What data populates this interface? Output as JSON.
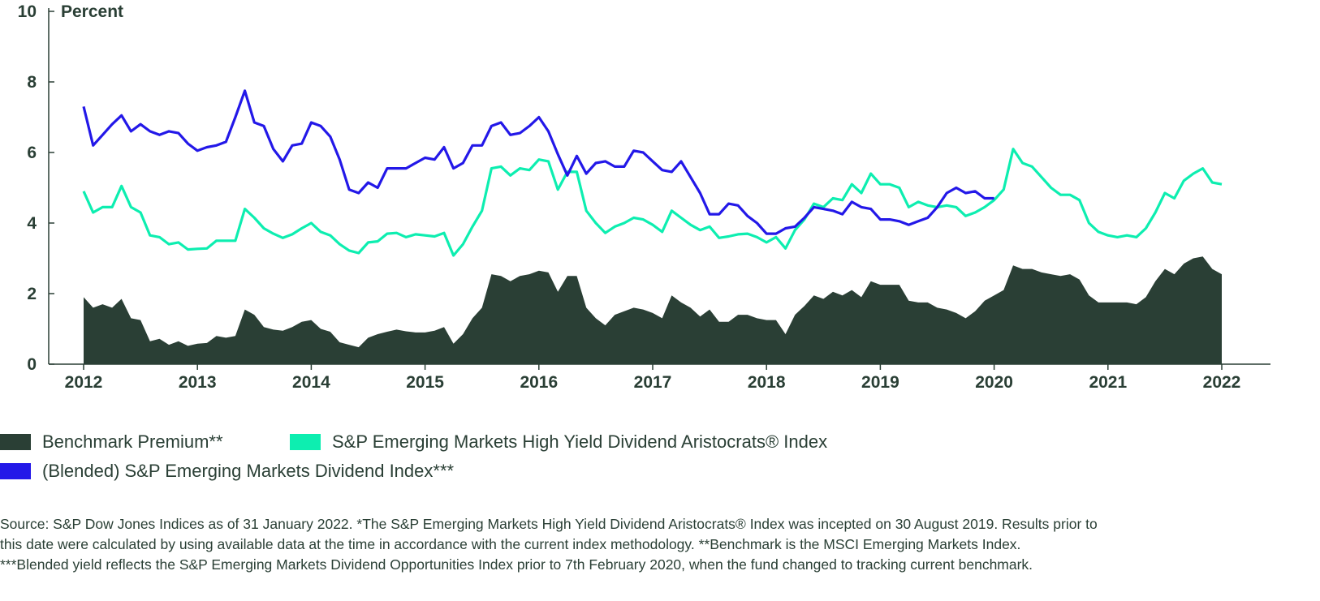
{
  "chart_data": {
    "type": "area+line",
    "ylabel": "Percent",
    "ylim": [
      0,
      10
    ],
    "yticks": [
      "0",
      "2",
      "4",
      "6",
      "8",
      "10"
    ],
    "xticks": [
      "2012",
      "2013",
      "2014",
      "2015",
      "2016",
      "2017",
      "2018",
      "2019",
      "2020",
      "2021",
      "2022"
    ],
    "x_start": "2012-01",
    "frequency": "monthly",
    "series": [
      {
        "name": "Benchmark Premium**",
        "kind": "area",
        "color": "#2a3f35",
        "values": [
          1.9,
          1.6,
          1.7,
          1.6,
          1.85,
          1.3,
          1.25,
          0.65,
          0.72,
          0.55,
          0.65,
          0.52,
          0.58,
          0.6,
          0.8,
          0.75,
          0.8,
          1.55,
          1.4,
          1.05,
          0.98,
          0.95,
          1.05,
          1.2,
          1.25,
          1.0,
          0.92,
          0.62,
          0.55,
          0.48,
          0.75,
          0.85,
          0.92,
          0.98,
          0.93,
          0.9,
          0.9,
          0.95,
          1.05,
          0.58,
          0.85,
          1.3,
          1.6,
          2.55,
          2.5,
          2.35,
          2.5,
          2.55,
          2.65,
          2.6,
          2.05,
          2.5,
          2.5,
          1.6,
          1.3,
          1.1,
          1.4,
          1.5,
          1.6,
          1.55,
          1.45,
          1.3,
          1.95,
          1.75,
          1.6,
          1.35,
          1.55,
          1.2,
          1.2,
          1.4,
          1.4,
          1.3,
          1.25,
          1.25,
          0.85,
          1.4,
          1.65,
          1.95,
          1.85,
          2.05,
          1.95,
          2.1,
          1.9,
          2.35,
          2.25,
          2.25,
          2.25,
          1.8,
          1.75,
          1.75,
          1.6,
          1.55,
          1.45,
          1.3,
          1.5,
          1.8,
          1.95,
          2.1,
          2.8,
          2.7,
          2.7,
          2.6,
          2.55,
          2.5,
          2.55,
          2.4,
          1.95,
          1.75,
          1.75,
          1.75,
          1.75,
          1.7,
          1.9,
          2.35,
          2.7,
          2.55,
          2.85,
          3.0,
          3.05,
          2.7,
          2.55
        ]
      },
      {
        "name": "S&P Emerging Markets High Yield Dividend Aristocrats® Index",
        "kind": "line",
        "color": "#0deeb0",
        "values": [
          4.9,
          4.3,
          4.45,
          4.45,
          5.05,
          4.45,
          4.3,
          3.65,
          3.6,
          3.4,
          3.45,
          3.25,
          3.27,
          3.28,
          3.5,
          3.5,
          3.5,
          4.4,
          4.15,
          3.85,
          3.7,
          3.58,
          3.68,
          3.85,
          4.0,
          3.75,
          3.65,
          3.4,
          3.22,
          3.15,
          3.45,
          3.48,
          3.7,
          3.72,
          3.6,
          3.68,
          3.65,
          3.62,
          3.72,
          3.08,
          3.4,
          3.9,
          4.35,
          5.55,
          5.6,
          5.35,
          5.55,
          5.5,
          5.8,
          5.75,
          4.95,
          5.45,
          5.45,
          4.35,
          4.0,
          3.72,
          3.9,
          4.0,
          4.15,
          4.1,
          3.95,
          3.75,
          4.35,
          4.15,
          3.95,
          3.8,
          3.9,
          3.58,
          3.62,
          3.68,
          3.7,
          3.6,
          3.45,
          3.6,
          3.28,
          3.8,
          4.1,
          4.55,
          4.45,
          4.7,
          4.65,
          5.1,
          4.85,
          5.4,
          5.1,
          5.1,
          5.0,
          4.45,
          4.6,
          4.5,
          4.45,
          4.5,
          4.45,
          4.2,
          4.3,
          4.45,
          4.65,
          4.95,
          6.1,
          5.7,
          5.6,
          5.3,
          5.0,
          4.8,
          4.8,
          4.65,
          4.0,
          3.75,
          3.65,
          3.6,
          3.65,
          3.6,
          3.85,
          4.3,
          4.85,
          4.7,
          5.2,
          5.4,
          5.55,
          5.15,
          5.1
        ]
      },
      {
        "name": "(Blended) S&P Emerging Markets Dividend Index***",
        "kind": "line",
        "color": "#2318e8",
        "values": [
          7.3,
          6.2,
          6.5,
          6.8,
          7.05,
          6.6,
          6.8,
          6.6,
          6.5,
          6.6,
          6.55,
          6.25,
          6.05,
          6.15,
          6.2,
          6.3,
          7.0,
          7.75,
          6.85,
          6.75,
          6.1,
          5.75,
          6.2,
          6.25,
          6.85,
          6.75,
          6.45,
          5.8,
          4.95,
          4.85,
          5.15,
          5.0,
          5.55,
          5.55,
          5.55,
          5.7,
          5.85,
          5.8,
          6.15,
          5.55,
          5.7,
          6.2,
          6.2,
          6.75,
          6.85,
          6.5,
          6.55,
          6.75,
          7.0,
          6.6,
          5.95,
          5.35,
          5.9,
          5.4,
          5.7,
          5.75,
          5.6,
          5.6,
          6.05,
          6.0,
          5.75,
          5.5,
          5.45,
          5.75,
          5.3,
          4.85,
          4.25,
          4.25,
          4.55,
          4.5,
          4.2,
          4.0,
          3.7,
          3.7,
          3.85,
          3.9,
          4.15,
          4.45,
          4.4,
          4.35,
          4.25,
          4.6,
          4.45,
          4.4,
          4.1,
          4.1,
          4.05,
          3.95,
          4.05,
          4.15,
          4.45,
          4.85,
          5.0,
          4.85,
          4.9,
          4.7,
          4.7
        ]
      }
    ],
    "legend_position": "bottom-left",
    "grid": false
  },
  "footnote": [
    "Source: S&P Dow Jones Indices as of 31 January 2022. *The S&P Emerging Markets High Yield Dividend Aristocrats® Index was incepted on 30 August 2019. Results prior to",
    "this date were calculated by using available data at the time in accordance with the current index methodology. **Benchmark is the MSCI Emerging Markets Index.",
    "***Blended yield reflects the S&P Emerging Markets Dividend Opportunities Index prior to 7th February 2020, when the fund changed to tracking current benchmark."
  ]
}
